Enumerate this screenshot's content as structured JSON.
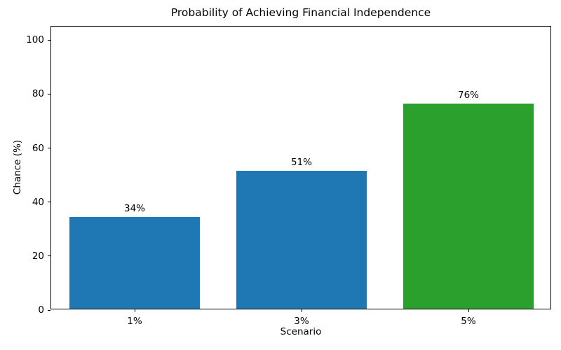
{
  "chart_data": {
    "type": "bar",
    "title": "Probability of Achieving Financial Independence",
    "xlabel": "Scenario",
    "ylabel": "Chance (%)",
    "categories": [
      "1%",
      "3%",
      "5%"
    ],
    "values": [
      34,
      51,
      76
    ],
    "value_labels": [
      "34%",
      "51%",
      "76%"
    ],
    "series": [
      {
        "name": "Chance",
        "values": [
          34,
          51,
          76
        ]
      }
    ],
    "bar_colors": [
      "#1f77b4",
      "#1f77b4",
      "#2ca02c"
    ],
    "ylim": [
      0,
      105
    ],
    "yticks": [
      0,
      20,
      40,
      60,
      80,
      100
    ],
    "grid": false,
    "legend": "none",
    "background_color": "#ffffff",
    "axis_color": "#000000"
  }
}
